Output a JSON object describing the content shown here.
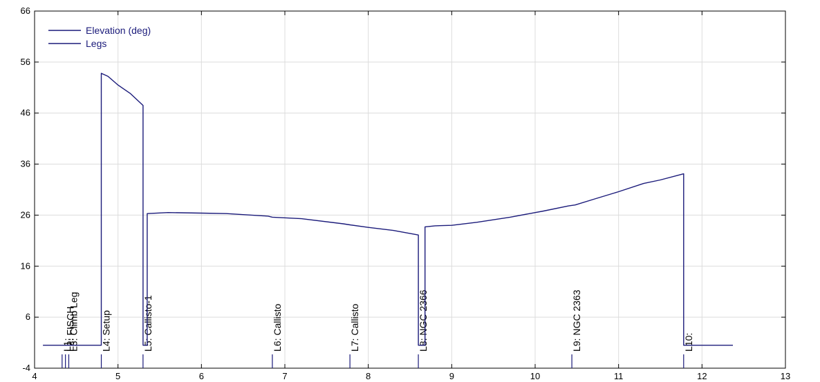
{
  "chart_data": {
    "type": "line",
    "xlim": [
      4,
      13
    ],
    "ylim": [
      -4,
      66
    ],
    "x_ticks": [
      4,
      5,
      6,
      7,
      8,
      9,
      10,
      11,
      12,
      13
    ],
    "y_ticks": [
      -4,
      6,
      16,
      26,
      36,
      46,
      56,
      66
    ],
    "grid": true,
    "legend_placement": "top-left",
    "line_color": "#1a1a7a",
    "legend": [
      {
        "label": "Elevation (deg)"
      },
      {
        "label": "Legs"
      }
    ],
    "series": [
      {
        "name": "Elevation (deg)",
        "x": [
          4.1,
          4.8,
          4.8,
          4.88,
          5.0,
          5.15,
          5.3,
          5.3,
          5.35,
          5.35,
          5.6,
          6.0,
          6.3,
          6.8,
          6.85,
          6.85,
          7.2,
          7.7,
          7.78,
          7.78,
          8.0,
          8.3,
          8.6,
          8.6,
          8.68,
          8.68,
          8.8,
          9.0,
          9.3,
          9.7,
          10.1,
          10.4,
          10.48,
          10.7,
          11.0,
          11.3,
          11.5,
          11.78,
          11.78,
          12.37
        ],
        "y": [
          0.5,
          0.5,
          53.8,
          53.2,
          51.5,
          49.8,
          47.5,
          0.5,
          0.5,
          26.3,
          26.5,
          26.4,
          26.3,
          25.8,
          25.6,
          25.6,
          25.3,
          24.3,
          24.1,
          24.1,
          23.6,
          23.0,
          22.1,
          0.5,
          0.5,
          23.7,
          23.9,
          24.0,
          24.6,
          25.6,
          26.8,
          27.8,
          28.0,
          29.1,
          30.6,
          32.2,
          32.9,
          34.1,
          0.5,
          0.5
        ]
      }
    ],
    "legs": [
      {
        "x": 4.33,
        "label": "L1: "
      },
      {
        "x": 4.37,
        "label": "L2: FISCH"
      },
      {
        "x": 4.41,
        "label": "L3: Climb Leg"
      },
      {
        "x": 4.8,
        "label": "L4: Setup"
      },
      {
        "x": 5.3,
        "label": "L5: Callisto-1"
      },
      {
        "x": 6.85,
        "label": "L6: Callisto"
      },
      {
        "x": 7.78,
        "label": "L7: Callisto"
      },
      {
        "x": 8.6,
        "label": "L8: NGC 2366"
      },
      {
        "x": 10.44,
        "label": "L9: NGC 2363"
      },
      {
        "x": 11.78,
        "label": "L10: "
      }
    ]
  }
}
